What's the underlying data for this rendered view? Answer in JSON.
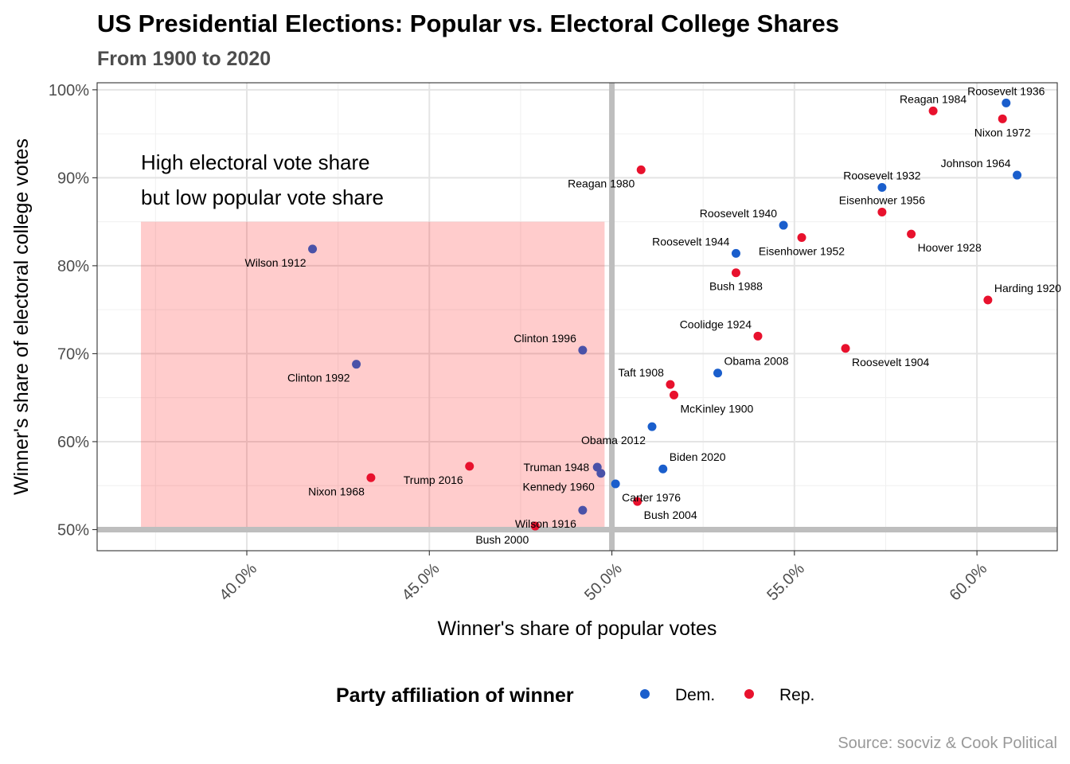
{
  "chart_data": {
    "type": "scatter",
    "title": "US Presidential Elections: Popular vs. Electoral College Shares",
    "subtitle": "From 1900 to 2020",
    "xlabel": "Winner's share of popular votes",
    "ylabel": "Winner's share of electoral college votes",
    "xlim": [
      35.9,
      62.2
    ],
    "ylim": [
      47.6,
      100.8
    ],
    "x_ticks": [
      40,
      45,
      50,
      55,
      60
    ],
    "x_tick_labels": [
      "40.0%",
      "45.0%",
      "50.0%",
      "55.0%",
      "60.0%"
    ],
    "y_ticks": [
      50,
      60,
      70,
      80,
      90,
      100
    ],
    "y_tick_labels": [
      "50%",
      "60%",
      "70%",
      "80%",
      "90%",
      "100%"
    ],
    "grid": true,
    "reference_lines": {
      "x": 50,
      "y": 50
    },
    "annotation": {
      "lines": [
        "High electoral vote share",
        "but low popular vote share"
      ],
      "rect": {
        "x": [
          37.1,
          49.8
        ],
        "y": [
          50.3,
          85
        ]
      },
      "color": "#ff0000"
    },
    "legend": {
      "title": "Party affiliation of winner",
      "position": "bottom",
      "entries": [
        {
          "label": "Dem.",
          "color": "#1a5ecc"
        },
        {
          "label": "Rep.",
          "color": "#e8112d"
        }
      ]
    },
    "caption": "Source: socviz & Cook Political",
    "points": [
      {
        "label": "Roosevelt 1936",
        "x": 60.8,
        "y": 98.5,
        "party": "Dem.",
        "lpos": "above"
      },
      {
        "label": "Reagan 1984",
        "x": 58.8,
        "y": 97.6,
        "party": "Rep.",
        "lpos": "above"
      },
      {
        "label": "Nixon 1972",
        "x": 60.7,
        "y": 96.7,
        "party": "Rep.",
        "lpos": "below"
      },
      {
        "label": "Johnson 1964",
        "x": 61.1,
        "y": 90.3,
        "party": "Dem.",
        "lpos": "above-left"
      },
      {
        "label": "Reagan 1980",
        "x": 50.8,
        "y": 90.9,
        "party": "Rep.",
        "lpos": "below-left"
      },
      {
        "label": "Roosevelt 1932",
        "x": 57.4,
        "y": 88.9,
        "party": "Dem.",
        "lpos": "above"
      },
      {
        "label": "Eisenhower 1956",
        "x": 57.4,
        "y": 86.1,
        "party": "Rep.",
        "lpos": "above"
      },
      {
        "label": "Roosevelt 1940",
        "x": 54.7,
        "y": 84.6,
        "party": "Dem.",
        "lpos": "above-left"
      },
      {
        "label": "Hoover 1928",
        "x": 58.2,
        "y": 83.6,
        "party": "Rep.",
        "lpos": "below-right"
      },
      {
        "label": "Eisenhower 1952",
        "x": 55.2,
        "y": 83.2,
        "party": "Rep.",
        "lpos": "below"
      },
      {
        "label": "Roosevelt 1944",
        "x": 53.4,
        "y": 81.4,
        "party": "Dem.",
        "lpos": "above-left"
      },
      {
        "label": "Wilson 1912",
        "x": 41.8,
        "y": 81.9,
        "party": "Dem.",
        "lpos": "below-left"
      },
      {
        "label": "Bush 1988",
        "x": 53.4,
        "y": 79.2,
        "party": "Rep.",
        "lpos": "below"
      },
      {
        "label": "Harding 1920",
        "x": 60.3,
        "y": 76.1,
        "party": "Rep.",
        "lpos": "above-right"
      },
      {
        "label": "Coolidge 1924",
        "x": 54.0,
        "y": 72.0,
        "party": "Rep.",
        "lpos": "above-left"
      },
      {
        "label": "Clinton 1996",
        "x": 49.2,
        "y": 70.4,
        "party": "Dem.",
        "lpos": "above-left"
      },
      {
        "label": "Roosevelt 1904",
        "x": 56.4,
        "y": 70.6,
        "party": "Rep.",
        "lpos": "below-right"
      },
      {
        "label": "Clinton 1992",
        "x": 43.0,
        "y": 68.8,
        "party": "Dem.",
        "lpos": "below-left"
      },
      {
        "label": "Obama 2008",
        "x": 52.9,
        "y": 67.8,
        "party": "Dem.",
        "lpos": "above-right"
      },
      {
        "label": "Taft 1908",
        "x": 51.6,
        "y": 66.5,
        "party": "Rep.",
        "lpos": "above-left"
      },
      {
        "label": "McKinley 1900",
        "x": 51.7,
        "y": 65.3,
        "party": "Rep.",
        "lpos": "below-right"
      },
      {
        "label": "Obama 2012",
        "x": 51.1,
        "y": 61.7,
        "party": "Dem.",
        "lpos": "below-left"
      },
      {
        "label": "Truman 1948",
        "x": 49.6,
        "y": 57.1,
        "party": "Dem.",
        "lpos": "left"
      },
      {
        "label": "Biden 2020",
        "x": 51.4,
        "y": 56.9,
        "party": "Dem.",
        "lpos": "above-right"
      },
      {
        "label": "Trump 2016",
        "x": 46.1,
        "y": 57.2,
        "party": "Rep.",
        "lpos": "below-left"
      },
      {
        "label": "Kennedy 1960",
        "x": 49.7,
        "y": 56.4,
        "party": "Dem.",
        "lpos": "below-left"
      },
      {
        "label": "Nixon 1968",
        "x": 43.4,
        "y": 55.9,
        "party": "Rep.",
        "lpos": "below-left"
      },
      {
        "label": "Carter 1976",
        "x": 50.1,
        "y": 55.2,
        "party": "Dem.",
        "lpos": "below-right"
      },
      {
        "label": "Bush 2004",
        "x": 50.7,
        "y": 53.2,
        "party": "Rep.",
        "lpos": "below-right"
      },
      {
        "label": "Wilson 1916",
        "x": 49.2,
        "y": 52.2,
        "party": "Dem.",
        "lpos": "below-left"
      },
      {
        "label": "Bush 2000",
        "x": 47.9,
        "y": 50.4,
        "party": "Rep.",
        "lpos": "below-left"
      }
    ]
  }
}
